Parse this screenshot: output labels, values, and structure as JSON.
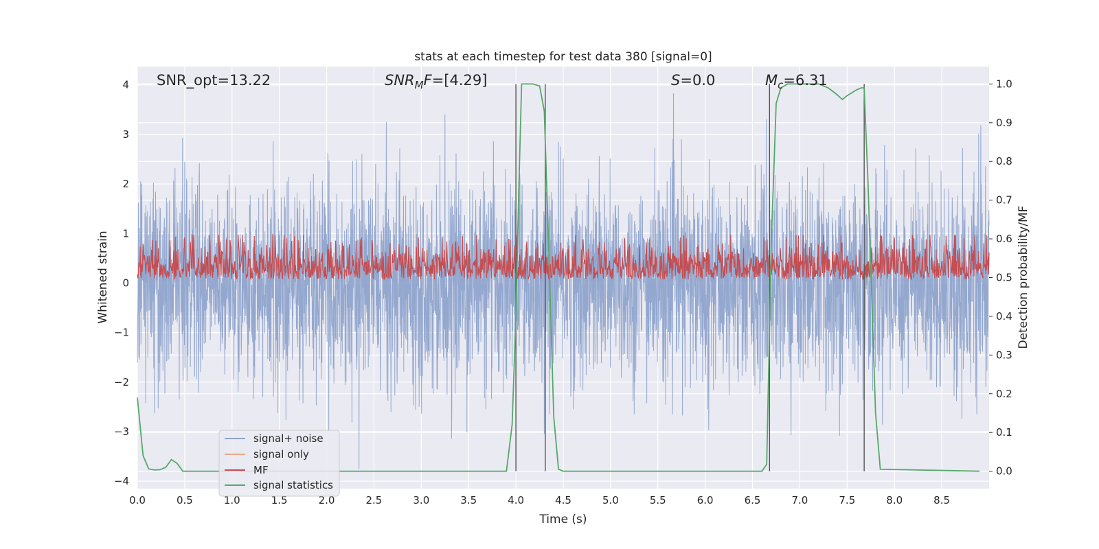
{
  "chart_data": {
    "type": "line",
    "title": "stats at each timestep for test data 380 [signal=0]",
    "xlabel": "Time (s)",
    "ylabel": "Whitened strain",
    "ylabel_right": "Detection probability/MF",
    "xlim": [
      0,
      9.0
    ],
    "ylim": [
      -4.15,
      4.37
    ],
    "ylim_right": [
      -0.045,
      1.045
    ],
    "xticks": [
      "0.0",
      "0.5",
      "1.0",
      "1.5",
      "2.0",
      "2.5",
      "3.0",
      "3.5",
      "4.0",
      "4.5",
      "5.0",
      "5.5",
      "6.0",
      "6.5",
      "7.0",
      "7.5",
      "8.0",
      "8.5"
    ],
    "yticks": [
      "4",
      "3",
      "2",
      "1",
      "0",
      "−1",
      "−2",
      "−3",
      "−4"
    ],
    "yticks_right": [
      "1.0",
      "0.9",
      "0.8",
      "0.7",
      "0.6",
      "0.5",
      "0.4",
      "0.3",
      "0.2",
      "0.1",
      "0.0"
    ],
    "grid": true,
    "legend_position": "lower-left",
    "annotations": {
      "snr_opt": "SNR_opt=13.22",
      "snr_mf_base": "SNR",
      "snr_mf_sub": "M",
      "snr_mf_rest": "F=[4.29]",
      "s_var": "S",
      "s_rest": "=0.0",
      "mc_base": "M",
      "mc_sub": "c",
      "mc_rest": "=6.31"
    },
    "vertical_lines_x": [
      4.0,
      4.31,
      6.68,
      7.68
    ],
    "series": [
      {
        "name": "signal+ noise",
        "color": "#8fa4cc",
        "description": "whitened strain noise, roughly Gaussian, amplitude ±2 with spikes to ±4",
        "noise_std": 1.0,
        "spike_max": 4.0
      },
      {
        "name": "signal only",
        "color": "#e8a887",
        "values_note": "flat at 0"
      },
      {
        "name": "MF",
        "color": "#c44e52",
        "axis": "right",
        "baseline": 0.52,
        "spread": 0.05
      },
      {
        "name": "signal statistics",
        "color": "#55a868",
        "axis": "right",
        "x": [
          0.0,
          0.06,
          0.12,
          0.18,
          0.24,
          0.3,
          0.36,
          0.42,
          0.48,
          0.54,
          3.9,
          3.96,
          4.0,
          4.03,
          4.06,
          4.1,
          4.18,
          4.25,
          4.3,
          4.35,
          4.4,
          4.45,
          4.5,
          6.6,
          6.65,
          6.7,
          6.75,
          6.8,
          6.87,
          7.0,
          7.2,
          7.3,
          7.38,
          7.45,
          7.5,
          7.6,
          7.65,
          7.68,
          7.72,
          7.76,
          7.8,
          7.85,
          8.9
        ],
        "y": [
          0.19,
          0.04,
          0.006,
          0.003,
          0.004,
          0.01,
          0.03,
          0.02,
          0.0,
          0.0,
          0.0,
          0.12,
          0.4,
          0.72,
          1.0,
          1.0,
          1.0,
          0.995,
          0.93,
          0.55,
          0.14,
          0.005,
          0.0,
          0.0,
          0.018,
          0.6,
          0.95,
          0.99,
          1.0,
          1.0,
          1.0,
          0.99,
          0.975,
          0.96,
          0.97,
          0.985,
          0.99,
          0.99,
          0.75,
          0.45,
          0.15,
          0.005,
          0.0
        ]
      }
    ]
  }
}
